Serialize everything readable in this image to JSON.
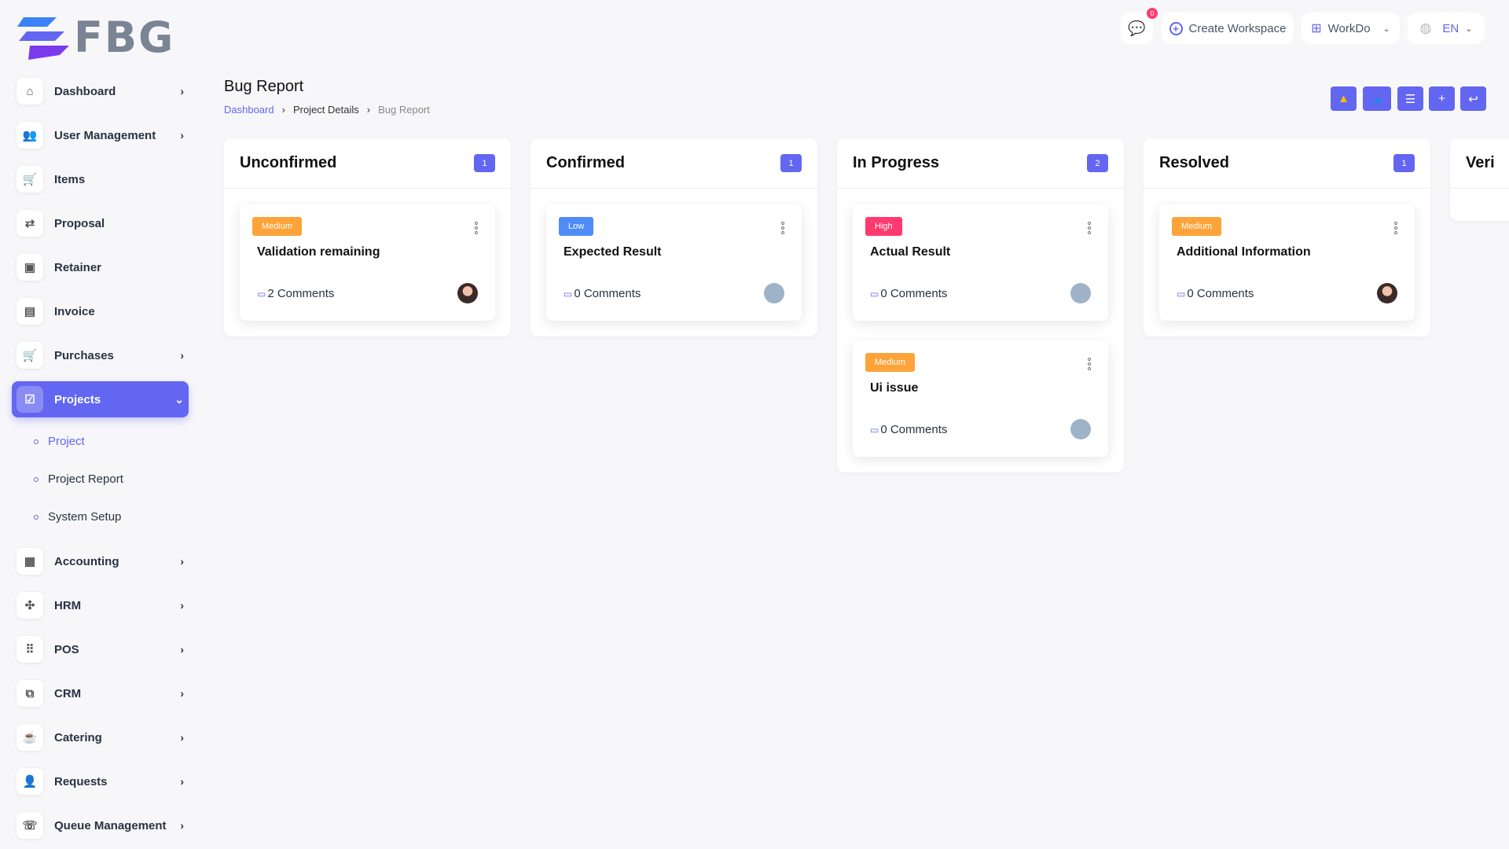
{
  "logo": {
    "text": "FBG"
  },
  "topbar": {
    "chat_badge": "0",
    "create_workspace": "Create Workspace",
    "workspace": "WorkDo",
    "language": "EN"
  },
  "sidebar": {
    "items": [
      {
        "label": "Dashboard",
        "icon": "home-icon",
        "chevron": true
      },
      {
        "label": "User Management",
        "icon": "users-icon",
        "chevron": true
      },
      {
        "label": "Items",
        "icon": "cart-icon",
        "chevron": false
      },
      {
        "label": "Proposal",
        "icon": "proposal-icon",
        "chevron": false
      },
      {
        "label": "Retainer",
        "icon": "retainer-icon",
        "chevron": false
      },
      {
        "label": "Invoice",
        "icon": "invoice-icon",
        "chevron": false
      },
      {
        "label": "Purchases",
        "icon": "cart-icon",
        "chevron": true
      },
      {
        "label": "Projects",
        "icon": "check-square-icon",
        "chevron": true,
        "active": true
      },
      {
        "label": "Accounting",
        "icon": "grid-icon",
        "chevron": true
      },
      {
        "label": "HRM",
        "icon": "hrm-icon",
        "chevron": true
      },
      {
        "label": "POS",
        "icon": "dots-grid-icon",
        "chevron": true
      },
      {
        "label": "CRM",
        "icon": "crm-icon",
        "chevron": true
      },
      {
        "label": "Catering",
        "icon": "catering-icon",
        "chevron": true
      },
      {
        "label": "Requests",
        "icon": "user-plus-icon",
        "chevron": true
      },
      {
        "label": "Queue Management",
        "icon": "phone-icon",
        "chevron": true
      }
    ],
    "subitems": [
      {
        "label": "Project",
        "active": true
      },
      {
        "label": "Project Report"
      },
      {
        "label": "System Setup"
      }
    ]
  },
  "page": {
    "title": "Bug Report",
    "breadcrumb": [
      "Dashboard",
      "Project Details",
      "Bug Report"
    ]
  },
  "actions": [
    "google-drive-icon",
    "onedrive-icon",
    "list-icon",
    "plus-icon",
    "back-icon"
  ],
  "columns": [
    {
      "name": "Unconfirmed",
      "count": "1",
      "cards": [
        {
          "priority": "Medium",
          "title": "Validation remaining",
          "comments": "2 Comments",
          "avatar": "photo"
        }
      ]
    },
    {
      "name": "Confirmed",
      "count": "1",
      "cards": [
        {
          "priority": "Low",
          "title": "Expected Result",
          "comments": "0 Comments",
          "avatar": "default"
        }
      ]
    },
    {
      "name": "In Progress",
      "count": "2",
      "cards": [
        {
          "priority": "High",
          "title": "Actual Result",
          "comments": "0 Comments",
          "avatar": "default"
        },
        {
          "priority": "Medium",
          "title": "Ui issue",
          "comments": "0 Comments",
          "avatar": "default"
        }
      ]
    },
    {
      "name": "Resolved",
      "count": "1",
      "cards": [
        {
          "priority": "Medium",
          "title": "Additional Information",
          "comments": "0 Comments",
          "avatar": "photo"
        }
      ]
    },
    {
      "name": "Veri",
      "count": "",
      "cards": []
    }
  ],
  "colors": {
    "accent": "#6366f1",
    "Medium": "#fda33a",
    "Low": "#4f8cf7",
    "High": "#ff3a6e"
  }
}
